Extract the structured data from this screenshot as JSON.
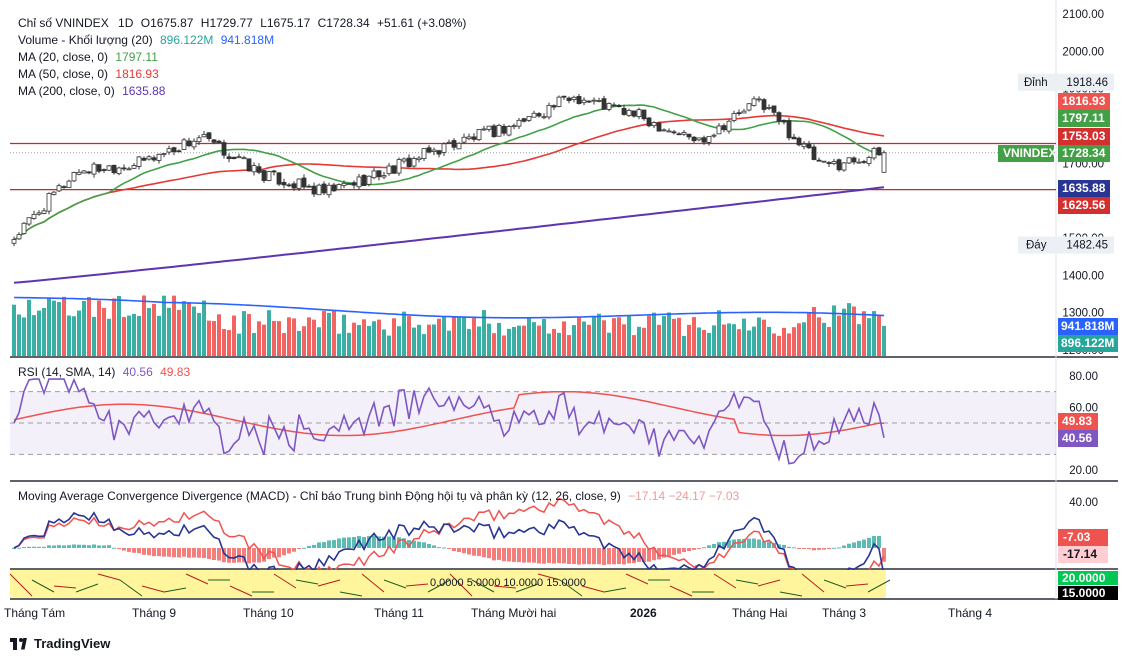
{
  "legend": {
    "main_title": "Chỉ số VNINDEX",
    "interval": "1D",
    "open": "O1675.87",
    "high": "H1729.77",
    "low": "L1675.17",
    "close": "C1728.34",
    "change": "+51.61 (+3.08%)",
    "volume_label": "Volume - Khối lượng (20)",
    "volume_val": "896.122M",
    "volume_ma": "941.818M",
    "ma20_label": "MA (20, close, 0)",
    "ma20_val": "1797.11",
    "ma50_label": "MA (50, close, 0)",
    "ma50_val": "1816.93",
    "ma200_label": "MA (200, close, 0)",
    "ma200_val": "1635.88",
    "rsi_label": "RSI (14, SMA, 14)",
    "rsi_val": "40.56",
    "rsi_ma_val": "49.83",
    "macd_label": "Moving Average Convergence Divergence (MACD) - Chỉ báo Trung bình Động hội tụ và phân kỳ (12, 26, close, 9)",
    "macd_vals": "−17.14  −24.17  −7.03"
  },
  "price_axis": {
    "ticks": [
      "2100.00",
      "2000.00",
      "1900.00",
      "1700.00",
      "1500.00",
      "1400.00",
      "1300.00",
      "1200.00"
    ],
    "peak_label": "Đỉnh",
    "peak_value": "1918.46",
    "trough_label": "Đáy",
    "trough_value": "1482.45",
    "tags": [
      {
        "value": "1816.93",
        "color": "#ef5350"
      },
      {
        "value": "1797.11",
        "color": "#43a047"
      },
      {
        "value": "1753.03",
        "color": "#d32f2f"
      },
      {
        "value": "1728.34",
        "color": "#43a047"
      },
      {
        "value": "1635.88",
        "color": "#283593"
      },
      {
        "value": "1629.56",
        "color": "#d32f2f"
      }
    ],
    "symbol_tag": "VNINDEX"
  },
  "volume_axis": {
    "tags": [
      {
        "value": "941.818M",
        "color": "#2962ff"
      },
      {
        "value": "896.122M",
        "color": "#26a69a"
      }
    ]
  },
  "rsi_axis": {
    "ticks": [
      "80.00",
      "60.00",
      "20.00"
    ],
    "tags": [
      {
        "value": "49.83",
        "color": "#ef5350"
      },
      {
        "value": "40.56",
        "color": "#7e57c2"
      }
    ]
  },
  "macd_axis": {
    "ticks": [
      "40.00"
    ],
    "tags": [
      {
        "value": "-7.03",
        "color": "#ef5350"
      },
      {
        "value": "-17.14",
        "color": "#ffcdd2"
      }
    ]
  },
  "indicator_strip": {
    "text": "0.0000   5.0000   10.0000  15.0000",
    "tags": [
      "20.0000",
      "15.0000"
    ]
  },
  "time_axis": [
    "Tháng Tám",
    "Tháng 9",
    "Tháng 10",
    "Tháng 11",
    "Tháng Mười hai",
    "2026",
    "Tháng Hai",
    "Tháng 3",
    "Tháng 4"
  ],
  "brand": "TradingView",
  "colors": {
    "up": "#26a69a",
    "down": "#ef5350",
    "ma20": "#43a047",
    "ma50": "#e53935",
    "ma200": "#5e35b1",
    "vol_ma": "#2962ff",
    "rsi": "#7e57c2",
    "rsi_ma": "#ef5350",
    "macd": "#283593",
    "signal": "#ef5350"
  },
  "chart_data": {
    "type": "candlestick",
    "symbol": "VNINDEX",
    "interval": "1D",
    "x_months": [
      "Tháng Tám",
      "Tháng 9",
      "Tháng 10",
      "Tháng 11",
      "Tháng Mười hai",
      "2026",
      "Tháng Hai",
      "Tháng 3",
      "Tháng 4"
    ],
    "y_range": [
      1200,
      2100
    ],
    "last_bar": {
      "open": 1675.87,
      "high": 1729.77,
      "low": 1675.17,
      "close": 1728.34,
      "change": 51.61,
      "change_pct": 3.08
    },
    "close_path": [
      {
        "month": "Tháng Tám",
        "close": 1500
      },
      {
        "month": "Tháng 9",
        "close": 1680
      },
      {
        "month": "Tháng 10",
        "close": 1700
      },
      {
        "month": "Tháng 10",
        "close": 1770
      },
      {
        "month": "Tháng 11",
        "close": 1670
      },
      {
        "month": "Tháng 11",
        "close": 1620
      },
      {
        "month": "Tháng Mười hai",
        "close": 1680
      },
      {
        "month": "Tháng Mười hai",
        "close": 1750
      },
      {
        "month": "2026",
        "close": 1800
      },
      {
        "month": "2026",
        "close": 1880
      },
      {
        "month": "Tháng Hai",
        "close": 1830
      },
      {
        "month": "Tháng Hai",
        "close": 1760
      },
      {
        "month": "Tháng 3",
        "close": 1870
      },
      {
        "month": "Tháng 3",
        "close": 1690
      },
      {
        "month": "Tháng 3",
        "close": 1728.34
      }
    ],
    "horizontal_lines": [
      1753.03,
      1629.56
    ],
    "peak": 1918.46,
    "trough": 1482.45,
    "indicators": {
      "ma20": 1797.11,
      "ma50": 1816.93,
      "ma200": 1635.88,
      "volume": 896.122,
      "volume_ma": 941.818,
      "volume_unit": "M",
      "rsi": 40.56,
      "rsi_ma": 49.83,
      "macd": -24.17,
      "macd_signal": -7.03,
      "macd_hist": -17.14
    }
  }
}
